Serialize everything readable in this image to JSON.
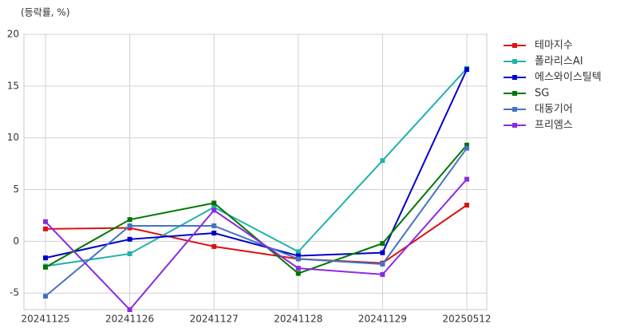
{
  "chart_data": {
    "type": "line",
    "unit_label": "(등락률, %)",
    "categories": [
      "20241125",
      "20241126",
      "20241127",
      "20241128",
      "20241129",
      "20250512"
    ],
    "series": [
      {
        "name": "테마지수",
        "color": "#dd1111",
        "values": [
          1.2,
          1.3,
          -0.5,
          -1.7,
          -2.1,
          3.5
        ]
      },
      {
        "name": "폴라리스AI",
        "color": "#20b2aa",
        "values": [
          -2.4,
          -1.2,
          3.3,
          -1.0,
          7.8,
          16.7
        ]
      },
      {
        "name": "에스와이스틸텍",
        "color": "#0000cc",
        "values": [
          -1.6,
          0.2,
          0.8,
          -1.4,
          -1.1,
          16.6
        ]
      },
      {
        "name": "SG",
        "color": "#007700",
        "values": [
          -2.5,
          2.1,
          3.7,
          -3.1,
          -0.2,
          9.3
        ]
      },
      {
        "name": "대동기어",
        "color": "#4472c4",
        "values": [
          -5.3,
          1.5,
          1.5,
          -1.7,
          -2.2,
          9.0
        ]
      },
      {
        "name": "프리엠스",
        "color": "#8a2be2",
        "values": [
          1.9,
          -6.6,
          3.0,
          -2.6,
          -3.2,
          6.0
        ]
      }
    ],
    "ylim": [
      -6.6,
      20
    ],
    "yticks": [
      -5,
      0,
      5,
      10,
      15,
      20
    ],
    "grid": true,
    "legend": "right"
  }
}
